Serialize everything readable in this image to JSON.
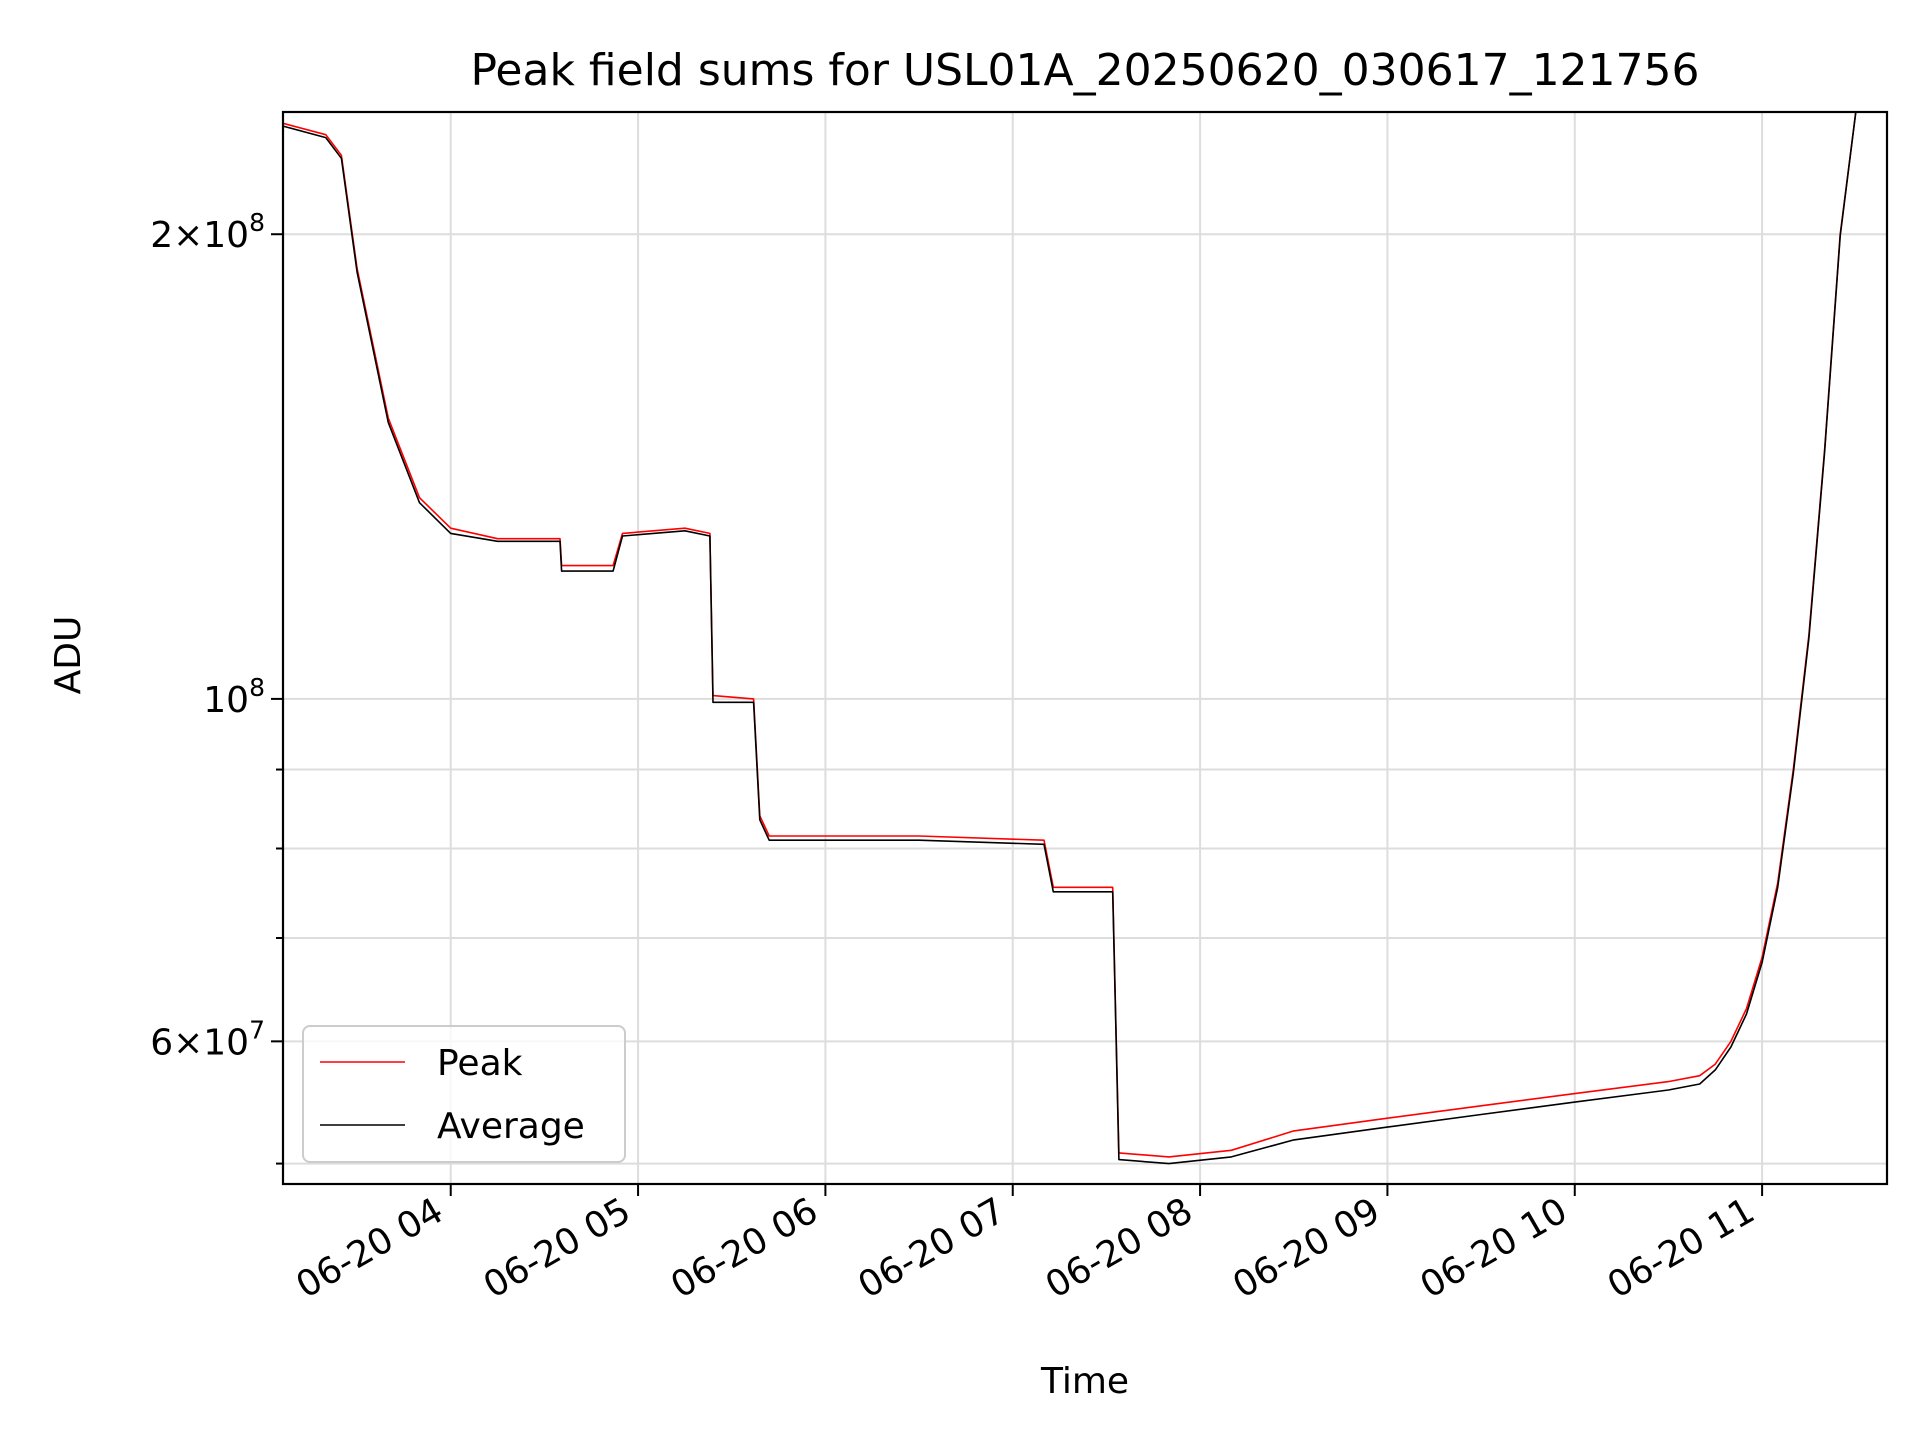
{
  "chart_data": {
    "type": "line",
    "title": "Peak field sums for USL01A_20250620_030617_121756",
    "xlabel": "Time",
    "ylabel": "ADU",
    "yscale": "log",
    "grid": true,
    "legend_position": "lower-left",
    "xlim": [
      "2025-06-20T03:06:17",
      "2025-06-20T11:40:00"
    ],
    "ylim": [
      48500000,
      240000000
    ],
    "x_ticks": [
      {
        "time": "2025-06-20T04:00:00",
        "label": "06-20 04"
      },
      {
        "time": "2025-06-20T05:00:00",
        "label": "06-20 05"
      },
      {
        "time": "2025-06-20T06:00:00",
        "label": "06-20 06"
      },
      {
        "time": "2025-06-20T07:00:00",
        "label": "06-20 07"
      },
      {
        "time": "2025-06-20T08:00:00",
        "label": "06-20 08"
      },
      {
        "time": "2025-06-20T09:00:00",
        "label": "06-20 09"
      },
      {
        "time": "2025-06-20T10:00:00",
        "label": "06-20 10"
      },
      {
        "time": "2025-06-20T11:00:00",
        "label": "06-20 11"
      }
    ],
    "y_ticks": [
      {
        "value": 200000000,
        "base": "2×10",
        "exp": "8"
      },
      {
        "value": 100000000,
        "base": "10",
        "exp": "8"
      },
      {
        "value": 60000000,
        "base": "6×10",
        "exp": "7"
      }
    ],
    "y_minor_ticks": [
      50000000,
      70000000,
      80000000,
      90000000
    ],
    "series": [
      {
        "name": "Peak",
        "color": "#ff0000",
        "x": [
          "2025-06-20T03:06:17",
          "2025-06-20T03:20:00",
          "2025-06-20T03:25:00",
          "2025-06-20T03:30:00",
          "2025-06-20T03:40:00",
          "2025-06-20T03:50:00",
          "2025-06-20T04:00:00",
          "2025-06-20T04:15:00",
          "2025-06-20T04:35:00",
          "2025-06-20T04:35:30",
          "2025-06-20T04:52:00",
          "2025-06-20T04:55:00",
          "2025-06-20T05:15:00",
          "2025-06-20T05:23:00",
          "2025-06-20T05:24:00",
          "2025-06-20T05:37:00",
          "2025-06-20T05:39:00",
          "2025-06-20T05:42:00",
          "2025-06-20T06:30:00",
          "2025-06-20T07:10:00",
          "2025-06-20T07:13:00",
          "2025-06-20T07:32:00",
          "2025-06-20T07:34:00",
          "2025-06-20T07:50:00",
          "2025-06-20T08:10:00",
          "2025-06-20T08:30:00",
          "2025-06-20T09:00:00",
          "2025-06-20T09:30:00",
          "2025-06-20T10:00:00",
          "2025-06-20T10:30:00",
          "2025-06-20T10:40:00",
          "2025-06-20T10:45:00",
          "2025-06-20T10:50:00",
          "2025-06-20T10:55:00",
          "2025-06-20T11:00:00",
          "2025-06-20T11:05:00",
          "2025-06-20T11:10:00",
          "2025-06-20T11:15:00",
          "2025-06-20T11:20:00",
          "2025-06-20T11:25:00",
          "2025-06-20T11:30:00"
        ],
        "y": [
          236000000,
          232000000,
          225000000,
          190000000,
          152000000,
          135000000,
          129000000,
          127000000,
          127000000,
          122000000,
          122000000,
          128000000,
          129000000,
          128000000,
          100500000,
          100000000,
          84000000,
          81500000,
          81500000,
          81000000,
          75500000,
          75500000,
          50800000,
          50500000,
          51000000,
          52500000,
          53500000,
          54500000,
          55500000,
          56500000,
          57000000,
          58000000,
          60000000,
          63000000,
          68000000,
          76000000,
          90000000,
          110000000,
          145000000,
          200000000,
          240000000
        ]
      },
      {
        "name": "Average",
        "color": "#000000",
        "x": [
          "2025-06-20T03:06:17",
          "2025-06-20T03:20:00",
          "2025-06-20T03:25:00",
          "2025-06-20T03:30:00",
          "2025-06-20T03:40:00",
          "2025-06-20T03:50:00",
          "2025-06-20T04:00:00",
          "2025-06-20T04:15:00",
          "2025-06-20T04:35:00",
          "2025-06-20T04:35:30",
          "2025-06-20T04:52:00",
          "2025-06-20T04:55:00",
          "2025-06-20T05:15:00",
          "2025-06-20T05:23:00",
          "2025-06-20T05:24:00",
          "2025-06-20T05:37:00",
          "2025-06-20T05:39:00",
          "2025-06-20T05:42:00",
          "2025-06-20T06:30:00",
          "2025-06-20T07:10:00",
          "2025-06-20T07:13:00",
          "2025-06-20T07:32:00",
          "2025-06-20T07:34:00",
          "2025-06-20T07:50:00",
          "2025-06-20T08:10:00",
          "2025-06-20T08:30:00",
          "2025-06-20T09:00:00",
          "2025-06-20T09:30:00",
          "2025-06-20T10:00:00",
          "2025-06-20T10:30:00",
          "2025-06-20T10:40:00",
          "2025-06-20T10:45:00",
          "2025-06-20T10:50:00",
          "2025-06-20T10:55:00",
          "2025-06-20T11:00:00",
          "2025-06-20T11:05:00",
          "2025-06-20T11:10:00",
          "2025-06-20T11:15:00",
          "2025-06-20T11:20:00",
          "2025-06-20T11:25:00",
          "2025-06-20T11:30:00"
        ],
        "y": [
          235000000,
          231000000,
          224000000,
          189000000,
          151000000,
          134000000,
          128000000,
          126500000,
          126500000,
          121000000,
          121000000,
          127500000,
          128500000,
          127500000,
          99500000,
          99500000,
          83500000,
          81000000,
          81000000,
          80500000,
          75000000,
          75000000,
          50300000,
          50000000,
          50500000,
          51800000,
          52800000,
          53800000,
          54800000,
          55800000,
          56300000,
          57500000,
          59500000,
          62500000,
          67500000,
          75500000,
          89500000,
          109500000,
          144500000,
          199500000,
          240000000
        ]
      }
    ]
  }
}
